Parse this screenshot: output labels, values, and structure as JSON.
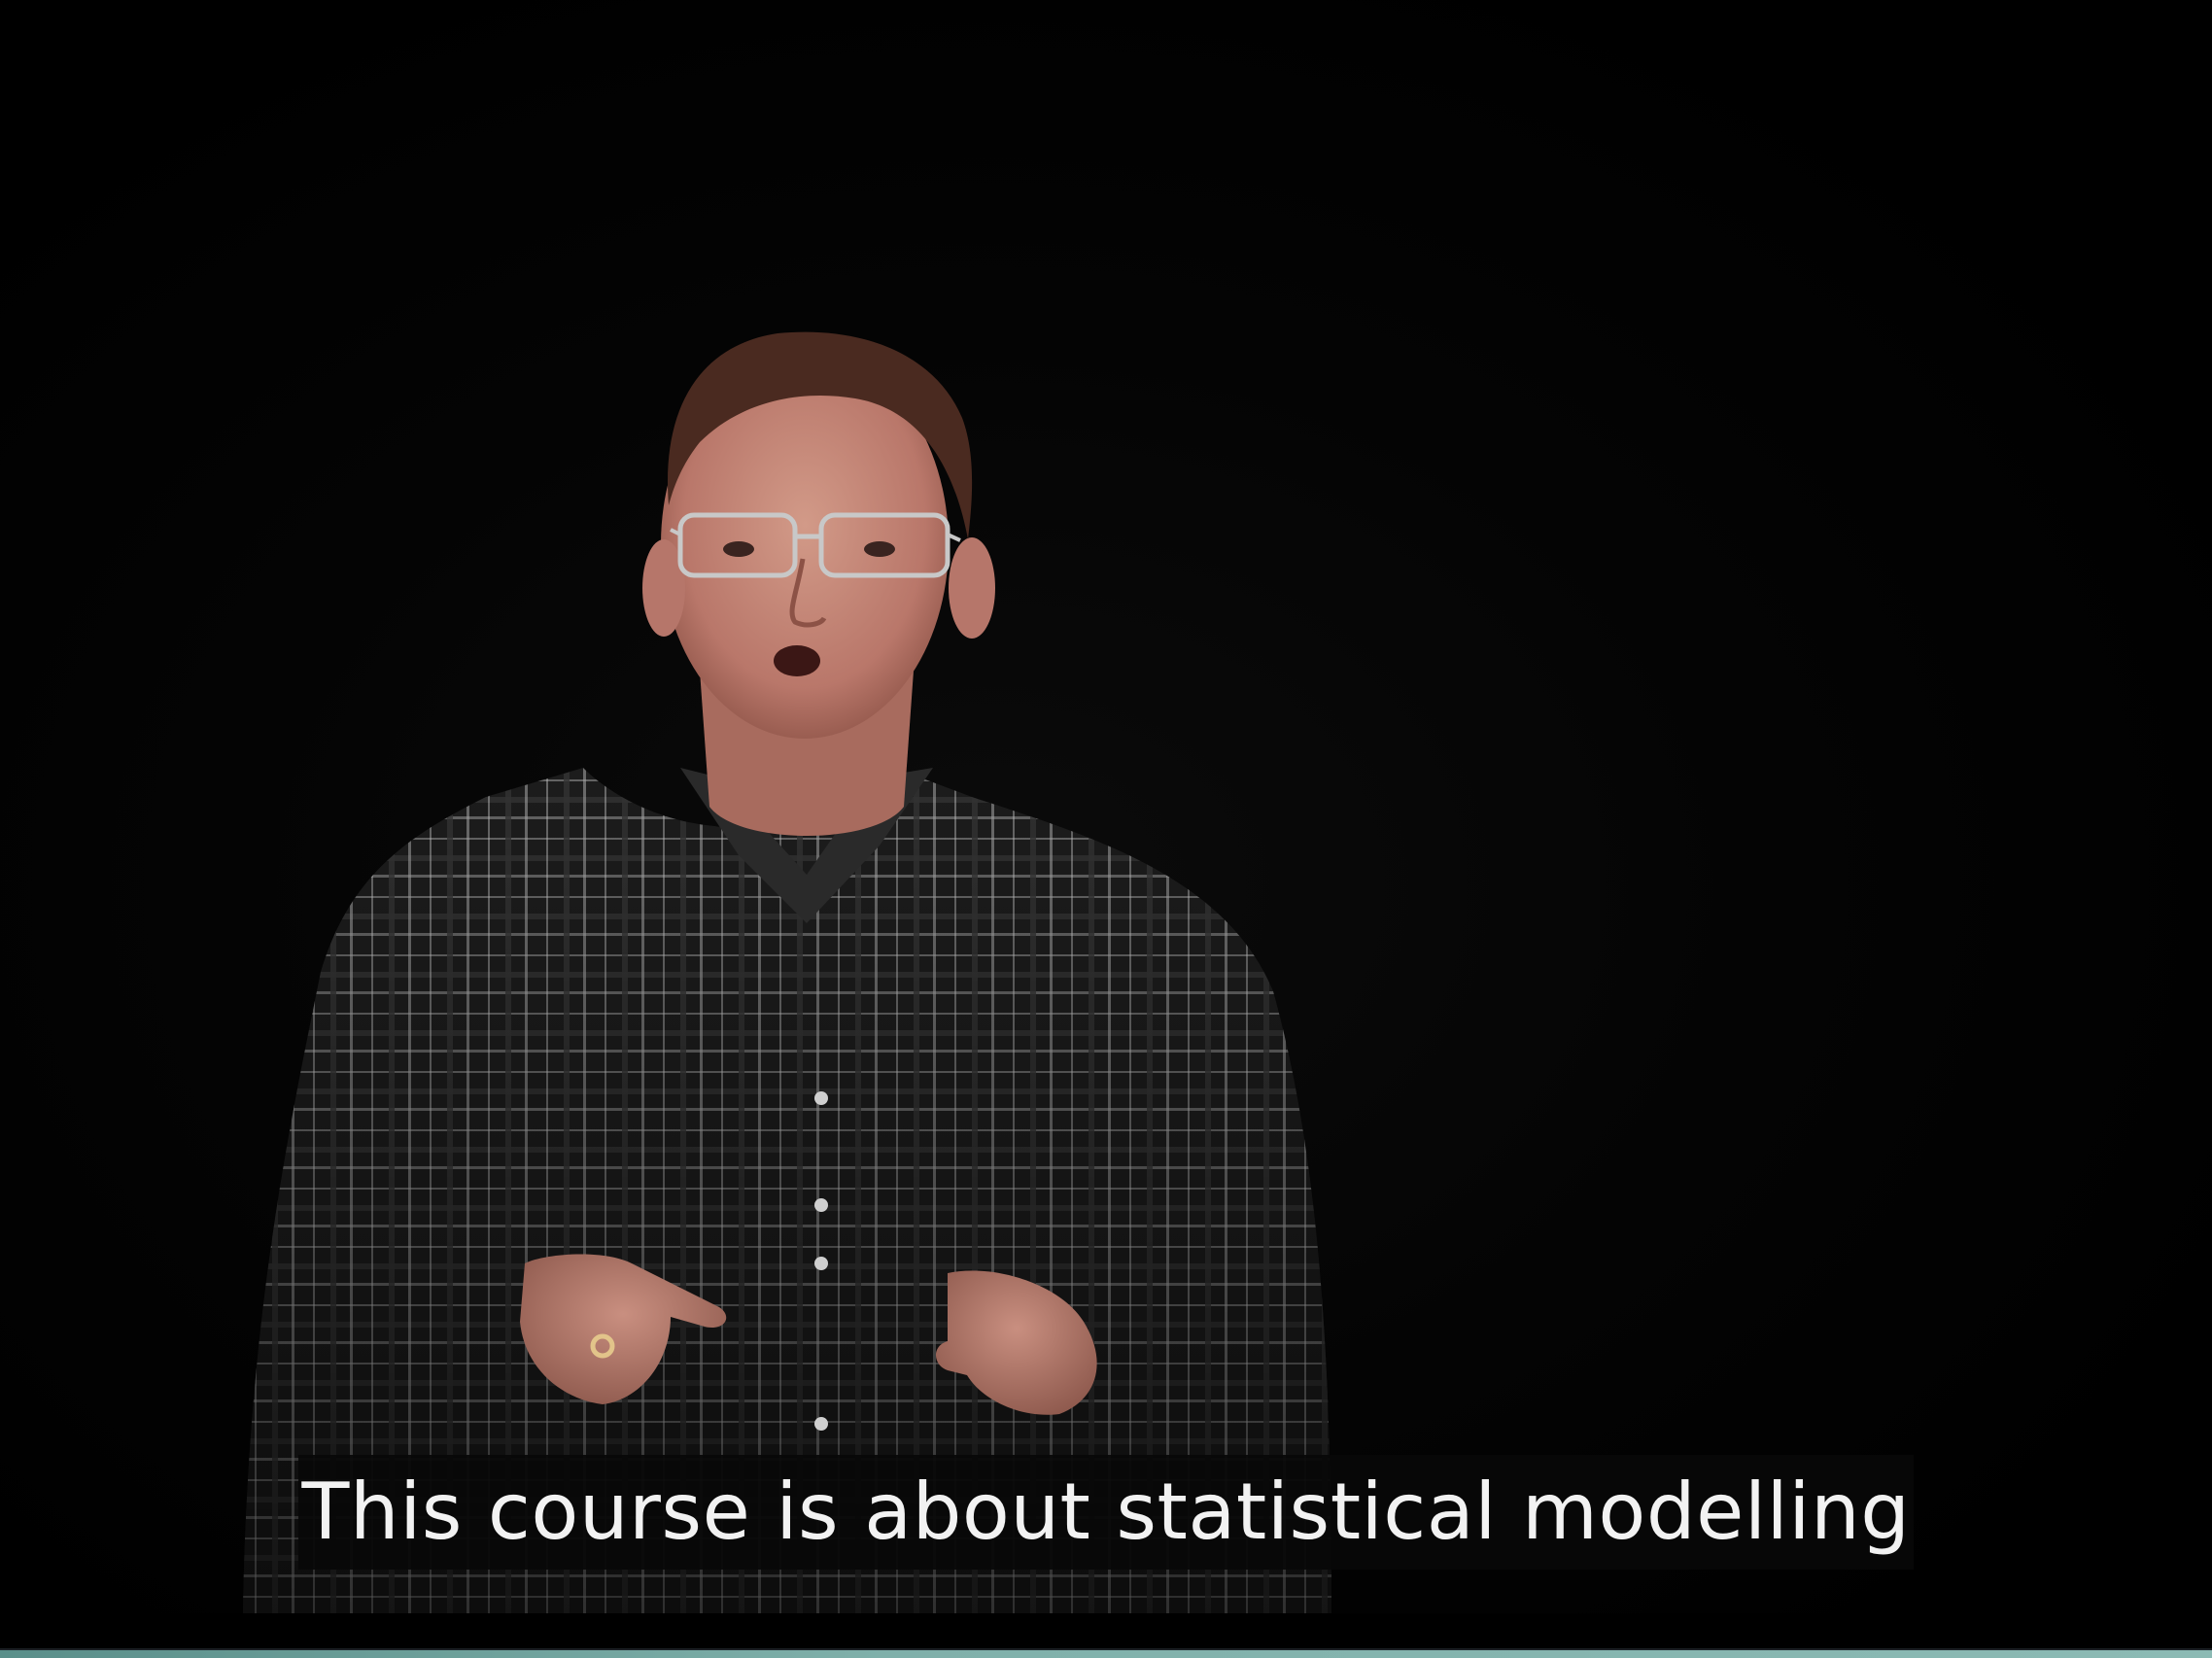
{
  "video": {
    "subtitle": "This course is about statistical modelling",
    "progress_fraction": 1.0,
    "colors": {
      "background": "#000000",
      "subtitle_text": "#f2f2f2",
      "subtitle_background": "#080808",
      "progress": "#7fb0aa"
    }
  }
}
